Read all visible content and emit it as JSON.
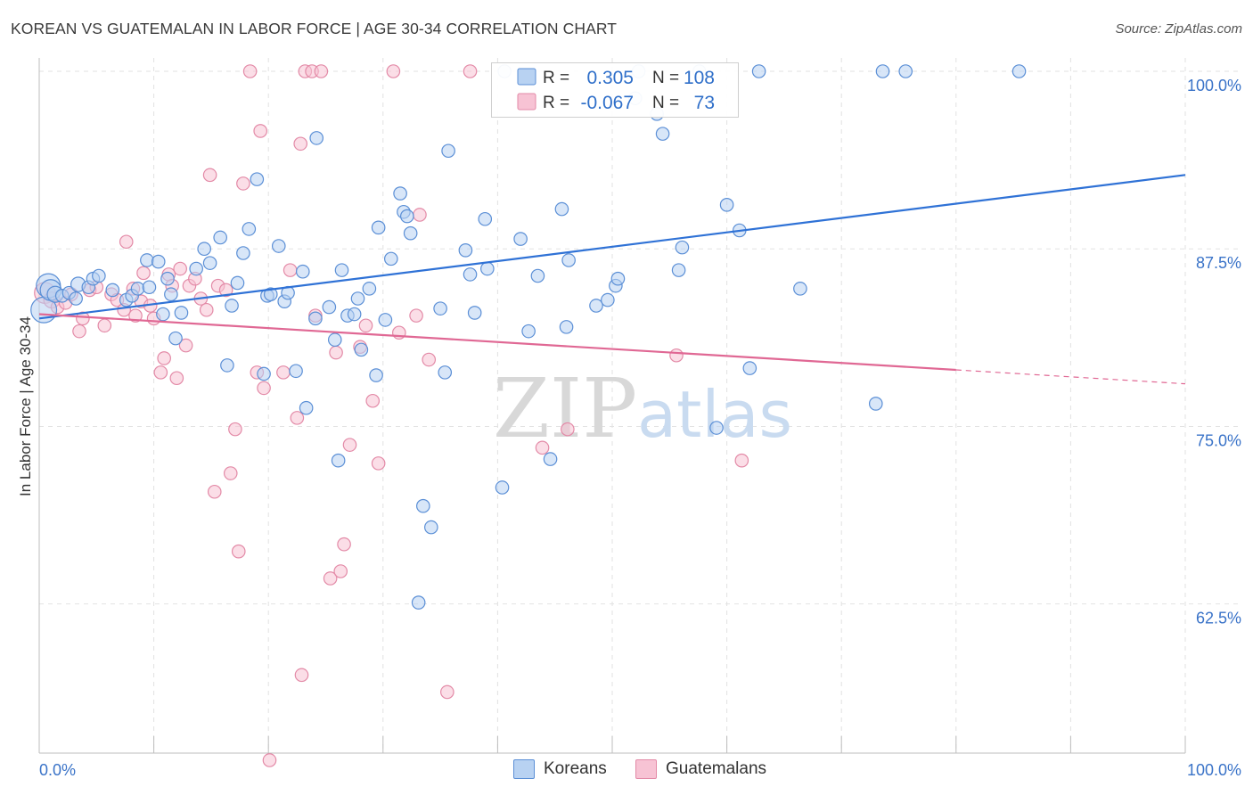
{
  "header": {
    "title": "KOREAN VS GUATEMALAN IN LABOR FORCE | AGE 30-34 CORRELATION CHART",
    "source": "Source: ZipAtlas.com"
  },
  "watermark": {
    "zip": "ZIP",
    "atlas": "atlas"
  },
  "colors": {
    "korean_fill": "#b8d2f2",
    "korean_stroke": "#5b8fd6",
    "korean_line": "#2f72d6",
    "guatemalan_fill": "#f7c3d4",
    "guatemalan_stroke": "#e38aa7",
    "guatemalan_line": "#e06894",
    "axis_text": "#3a73c8",
    "grid": "#e2e2e2"
  },
  "legend": {
    "rows": [
      {
        "r_label": "R =",
        "r_value": "0.305",
        "n_label": "N =",
        "n_value": "108"
      },
      {
        "r_label": "R =",
        "r_value": "-0.067",
        "n_label": "N =",
        "n_value": "73"
      }
    ]
  },
  "bottom_legend": {
    "koreans": "Koreans",
    "guatemalans": "Guatemalans"
  },
  "chart_data": {
    "type": "scatter",
    "title": "KOREAN VS GUATEMALAN IN LABOR FORCE | AGE 30-34 CORRELATION CHART",
    "xlabel": "",
    "ylabel": "In Labor Force | Age 30-34",
    "xlim": [
      0,
      100
    ],
    "ylim": [
      52,
      101.5
    ],
    "x_tick_labels": [
      {
        "value": 0,
        "label": "0.0%"
      },
      {
        "value": 100,
        "label": "100.0%"
      }
    ],
    "y_tick_labels": [
      {
        "value": 100,
        "label": "100.0%"
      },
      {
        "value": 87.5,
        "label": "87.5%"
      },
      {
        "value": 75,
        "label": "75.0%"
      },
      {
        "value": 62.5,
        "label": "62.5%"
      }
    ],
    "grid": true,
    "legend_position": "top-center",
    "series": [
      {
        "name": "Koreans",
        "R": 0.305,
        "N": 108,
        "trend": {
          "x": [
            0,
            100
          ],
          "y": [
            82.6,
            92.7
          ],
          "dashed_from": null
        },
        "points": [
          [
            0.4,
            83.2,
            1.6
          ],
          [
            0.8,
            84.9,
            1.5
          ],
          [
            1.0,
            84.6,
            1.3
          ],
          [
            1.4,
            84.3,
            1.0
          ],
          [
            2.0,
            84.2,
            0.8
          ],
          [
            2.6,
            84.4,
            0.8
          ],
          [
            3.2,
            84.0,
            0.8
          ],
          [
            3.4,
            85.0,
            0.9
          ],
          [
            4.3,
            84.8,
            0.8
          ],
          [
            4.7,
            85.4,
            0.8
          ],
          [
            5.2,
            85.6,
            0.8
          ],
          [
            6.4,
            84.6,
            0.8
          ],
          [
            7.6,
            83.9,
            0.8
          ],
          [
            8.1,
            84.2,
            0.8
          ],
          [
            8.6,
            84.7,
            0.8
          ],
          [
            9.4,
            86.7,
            0.8
          ],
          [
            9.6,
            84.8,
            0.8
          ],
          [
            10.4,
            86.6,
            0.8
          ],
          [
            10.8,
            82.9,
            0.8
          ],
          [
            11.2,
            85.4,
            0.8
          ],
          [
            11.5,
            84.3,
            0.8
          ],
          [
            11.9,
            81.2,
            0.8
          ],
          [
            12.4,
            83.0,
            0.8
          ],
          [
            13.7,
            86.1,
            0.8
          ],
          [
            14.4,
            87.5,
            0.8
          ],
          [
            14.9,
            86.5,
            0.8
          ],
          [
            15.8,
            88.3,
            0.8
          ],
          [
            16.4,
            79.3,
            0.8
          ],
          [
            16.8,
            83.5,
            0.8
          ],
          [
            17.3,
            85.1,
            0.8
          ],
          [
            17.8,
            87.2,
            0.8
          ],
          [
            18.3,
            88.9,
            0.8
          ],
          [
            19.0,
            92.4,
            0.8
          ],
          [
            19.6,
            78.7,
            0.8
          ],
          [
            19.9,
            84.2,
            0.8
          ],
          [
            20.2,
            84.3,
            0.8
          ],
          [
            20.9,
            87.7,
            0.8
          ],
          [
            21.4,
            83.8,
            0.8
          ],
          [
            21.7,
            84.4,
            0.8
          ],
          [
            22.4,
            78.9,
            0.8
          ],
          [
            23.0,
            85.9,
            0.8
          ],
          [
            23.3,
            76.3,
            0.8
          ],
          [
            24.1,
            82.6,
            0.8
          ],
          [
            24.2,
            95.3,
            0.8
          ],
          [
            25.3,
            83.4,
            0.8
          ],
          [
            25.8,
            81.1,
            0.8
          ],
          [
            26.1,
            72.6,
            0.8
          ],
          [
            26.4,
            86.0,
            0.8
          ],
          [
            26.9,
            82.8,
            0.8
          ],
          [
            27.5,
            82.9,
            0.8
          ],
          [
            27.8,
            84.0,
            0.8
          ],
          [
            28.1,
            80.4,
            0.8
          ],
          [
            28.8,
            84.7,
            0.8
          ],
          [
            29.4,
            78.6,
            0.8
          ],
          [
            29.6,
            89.0,
            0.8
          ],
          [
            30.2,
            82.5,
            0.8
          ],
          [
            30.7,
            86.8,
            0.8
          ],
          [
            31.5,
            91.4,
            0.8
          ],
          [
            31.8,
            90.1,
            0.8
          ],
          [
            32.1,
            89.8,
            0.8
          ],
          [
            32.4,
            88.6,
            0.8
          ],
          [
            33.1,
            62.6,
            0.8
          ],
          [
            33.5,
            69.4,
            0.8
          ],
          [
            34.2,
            67.9,
            0.8
          ],
          [
            35.0,
            83.3,
            0.8
          ],
          [
            35.4,
            78.8,
            0.8
          ],
          [
            35.7,
            94.4,
            0.8
          ],
          [
            37.2,
            87.4,
            0.8
          ],
          [
            37.6,
            85.7,
            0.8
          ],
          [
            38.0,
            83.0,
            0.8
          ],
          [
            38.9,
            89.6,
            0.8
          ],
          [
            39.1,
            86.1,
            0.8
          ],
          [
            40.4,
            70.7,
            0.8
          ],
          [
            40.6,
            100.0,
            0.8
          ],
          [
            42.0,
            88.2,
            0.8
          ],
          [
            42.7,
            81.7,
            0.8
          ],
          [
            43.5,
            85.6,
            0.8
          ],
          [
            44.6,
            72.7,
            0.8
          ],
          [
            45.6,
            90.3,
            0.8
          ],
          [
            46.0,
            82.0,
            0.8
          ],
          [
            46.2,
            86.7,
            0.8
          ],
          [
            48.6,
            83.5,
            0.8
          ],
          [
            49.6,
            83.9,
            0.8
          ],
          [
            50.3,
            84.9,
            0.8
          ],
          [
            50.5,
            85.4,
            0.8
          ],
          [
            52.0,
            98.1,
            0.8
          ],
          [
            52.3,
            100.0,
            0.8
          ],
          [
            53.9,
            97.0,
            0.8
          ],
          [
            54.4,
            95.6,
            0.8
          ],
          [
            55.8,
            86.0,
            0.8
          ],
          [
            56.1,
            87.6,
            0.8
          ],
          [
            57.6,
            100.0,
            0.8
          ],
          [
            59.1,
            74.9,
            0.8
          ],
          [
            60.0,
            90.6,
            0.8
          ],
          [
            61.1,
            88.8,
            0.8
          ],
          [
            62.0,
            79.1,
            0.8
          ],
          [
            62.8,
            100.0,
            0.8
          ],
          [
            66.4,
            84.7,
            0.8
          ],
          [
            73.0,
            76.6,
            0.8
          ],
          [
            73.6,
            100.0,
            0.8
          ],
          [
            75.6,
            100.0,
            0.8
          ],
          [
            85.5,
            100.0,
            0.8
          ]
        ]
      },
      {
        "name": "Guatemalans",
        "R": -0.067,
        "N": 73,
        "trend": {
          "x": [
            0,
            100
          ],
          "y": [
            82.9,
            78.0
          ],
          "dashed_from": 80
        },
        "points": [
          [
            0.5,
            84.4,
            1.3
          ],
          [
            1.1,
            83.9,
            1.0
          ],
          [
            1.6,
            83.4,
            0.8
          ],
          [
            2.3,
            83.7,
            0.8
          ],
          [
            2.8,
            84.3,
            0.8
          ],
          [
            3.5,
            81.7,
            0.8
          ],
          [
            3.8,
            82.6,
            0.8
          ],
          [
            4.4,
            84.6,
            0.8
          ],
          [
            5.0,
            84.8,
            0.8
          ],
          [
            5.7,
            82.1,
            0.8
          ],
          [
            6.3,
            84.3,
            0.8
          ],
          [
            6.8,
            83.9,
            0.8
          ],
          [
            7.4,
            83.2,
            0.8
          ],
          [
            7.6,
            88.0,
            0.8
          ],
          [
            8.2,
            84.7,
            0.8
          ],
          [
            8.4,
            82.8,
            0.8
          ],
          [
            8.9,
            83.8,
            0.8
          ],
          [
            9.1,
            85.8,
            0.8
          ],
          [
            9.7,
            83.5,
            0.8
          ],
          [
            10.0,
            82.6,
            0.8
          ],
          [
            10.6,
            78.8,
            0.8
          ],
          [
            10.9,
            79.8,
            0.8
          ],
          [
            11.3,
            85.7,
            0.8
          ],
          [
            11.6,
            84.9,
            0.8
          ],
          [
            12.0,
            78.4,
            0.8
          ],
          [
            12.3,
            86.1,
            0.8
          ],
          [
            12.8,
            80.7,
            0.8
          ],
          [
            13.1,
            84.9,
            0.8
          ],
          [
            13.6,
            85.4,
            0.8
          ],
          [
            14.1,
            84.0,
            0.8
          ],
          [
            14.6,
            83.2,
            0.8
          ],
          [
            14.9,
            92.7,
            0.8
          ],
          [
            15.3,
            70.4,
            0.8
          ],
          [
            15.6,
            84.9,
            0.8
          ],
          [
            16.3,
            84.6,
            0.8
          ],
          [
            16.7,
            71.7,
            0.8
          ],
          [
            17.1,
            74.8,
            0.8
          ],
          [
            17.4,
            66.2,
            0.8
          ],
          [
            17.8,
            92.1,
            0.8
          ],
          [
            18.4,
            100.0,
            0.8
          ],
          [
            19.0,
            78.8,
            0.8
          ],
          [
            19.3,
            95.8,
            0.8
          ],
          [
            19.6,
            77.7,
            0.8
          ],
          [
            20.1,
            51.5,
            0.8
          ],
          [
            21.3,
            78.8,
            0.8
          ],
          [
            21.9,
            86.0,
            0.8
          ],
          [
            22.5,
            75.6,
            0.8
          ],
          [
            22.8,
            94.9,
            0.8
          ],
          [
            22.9,
            57.5,
            0.8
          ],
          [
            23.2,
            100.0,
            0.8
          ],
          [
            23.8,
            100.0,
            0.8
          ],
          [
            24.1,
            82.8,
            0.8
          ],
          [
            24.6,
            100.0,
            0.8
          ],
          [
            25.4,
            64.3,
            0.8
          ],
          [
            25.9,
            80.2,
            0.8
          ],
          [
            26.3,
            64.8,
            0.8
          ],
          [
            26.6,
            66.7,
            0.8
          ],
          [
            27.1,
            73.7,
            0.8
          ],
          [
            28.0,
            80.6,
            0.8
          ],
          [
            28.5,
            82.1,
            0.8
          ],
          [
            29.1,
            76.8,
            0.8
          ],
          [
            29.6,
            72.4,
            0.8
          ],
          [
            30.9,
            100.0,
            0.8
          ],
          [
            31.4,
            81.6,
            0.8
          ],
          [
            32.9,
            82.8,
            0.8
          ],
          [
            33.2,
            89.9,
            0.8
          ],
          [
            34.0,
            79.7,
            0.8
          ],
          [
            35.6,
            56.3,
            0.8
          ],
          [
            37.6,
            100.0,
            0.8
          ],
          [
            43.9,
            73.5,
            0.8
          ],
          [
            46.1,
            74.8,
            0.8
          ],
          [
            55.6,
            80.0,
            0.8
          ],
          [
            61.3,
            72.6,
            0.8
          ]
        ]
      }
    ]
  }
}
